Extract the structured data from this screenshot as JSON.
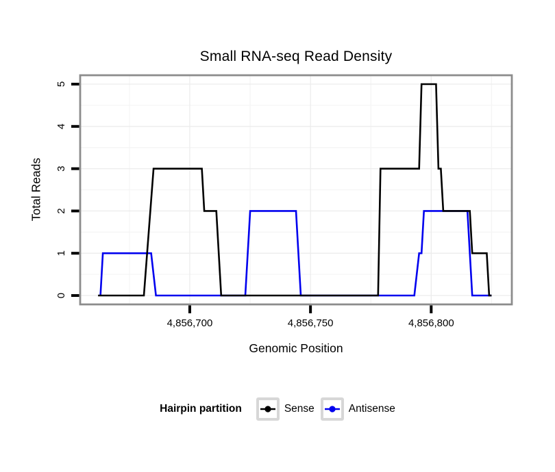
{
  "chart_data": {
    "type": "line",
    "title": "Small RNA-seq Read Density",
    "xlabel": "Genomic Position",
    "ylabel": "Total Reads",
    "legend_title": "Hairpin partition",
    "legend_position": "bottom",
    "grid": true,
    "xlim": [
      4856654.6,
      4856833.4
    ],
    "ylim": [
      -0.21,
      5.21
    ],
    "x_ticks": [
      {
        "value": 4856700,
        "label": "4,856,700"
      },
      {
        "value": 4856750,
        "label": "4,856,750"
      },
      {
        "value": 4856800,
        "label": "4,856,800"
      }
    ],
    "x_minor": [
      4856675,
      4856725,
      4856775,
      4856825
    ],
    "y_ticks": [
      {
        "value": 0,
        "label": "0"
      },
      {
        "value": 1,
        "label": "1"
      },
      {
        "value": 2,
        "label": "2"
      },
      {
        "value": 3,
        "label": "3"
      },
      {
        "value": 4,
        "label": "4"
      },
      {
        "value": 5,
        "label": "5"
      }
    ],
    "y_minor": [
      0.5,
      1.5,
      2.5,
      3.5,
      4.5
    ],
    "series": [
      {
        "name": "Sense",
        "color": "#000000",
        "points": [
          [
            4856662,
            0
          ],
          [
            4856681,
            0
          ],
          [
            4856685,
            3
          ],
          [
            4856705,
            3
          ],
          [
            4856706,
            2
          ],
          [
            4856711,
            2
          ],
          [
            4856713,
            0
          ],
          [
            4856778,
            0
          ],
          [
            4856779,
            3
          ],
          [
            4856795,
            3
          ],
          [
            4856796,
            5
          ],
          [
            4856802,
            5
          ],
          [
            4856803,
            3
          ],
          [
            4856804,
            3
          ],
          [
            4856805,
            2
          ],
          [
            4856816,
            2
          ],
          [
            4856817,
            1
          ],
          [
            4856823,
            1
          ],
          [
            4856824,
            0
          ],
          [
            4856825,
            0
          ]
        ]
      },
      {
        "name": "Antisense",
        "color": "#0000ee",
        "points": [
          [
            4856663,
            0
          ],
          [
            4856664,
            1
          ],
          [
            4856684,
            1
          ],
          [
            4856686,
            0
          ],
          [
            4856723,
            0
          ],
          [
            4856725,
            2
          ],
          [
            4856744,
            2
          ],
          [
            4856746,
            0
          ],
          [
            4856793,
            0
          ],
          [
            4856795,
            1
          ],
          [
            4856796,
            1
          ],
          [
            4856797,
            2
          ],
          [
            4856815,
            2
          ],
          [
            4856817,
            0
          ],
          [
            4856825,
            0
          ]
        ]
      }
    ],
    "style": {
      "panel_border_color": "#8c8c8c",
      "grid_major_color": "#ececec",
      "grid_minor_color": "#f5f5f5",
      "tick_color": "#000000",
      "axis_text_color": "#000000",
      "legend_key_border_color": "#d7d7d7"
    }
  }
}
